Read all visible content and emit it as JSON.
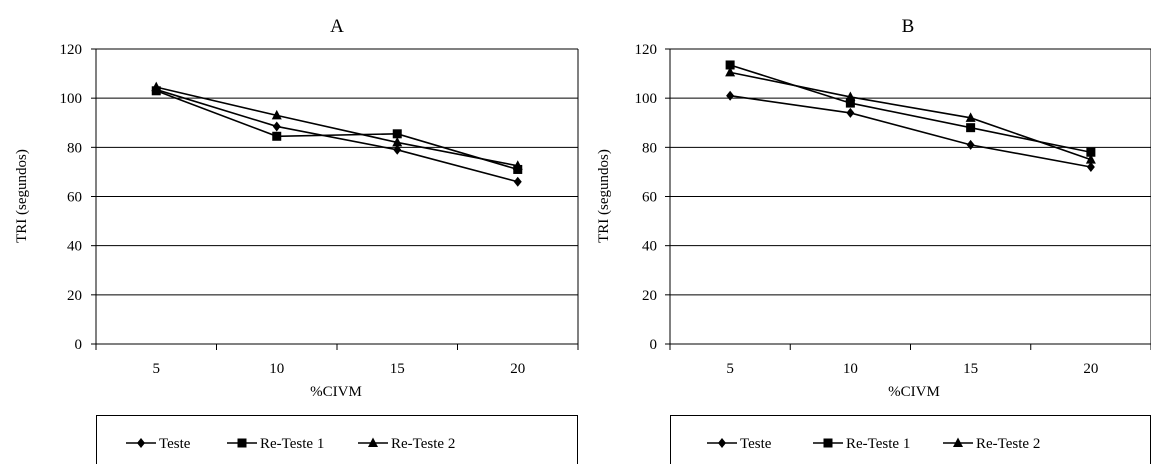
{
  "chart_data": [
    {
      "type": "line",
      "title": "A",
      "xlabel": "%CIVM",
      "ylabel": "TRI (segundos)",
      "categories": [
        "5",
        "10",
        "15",
        "20"
      ],
      "ylim": [
        0,
        120
      ],
      "yticks": [
        "0",
        "20",
        "40",
        "60",
        "80",
        "100",
        "120"
      ],
      "grid": true,
      "legend_position": "bottom",
      "series": [
        {
          "name": "Teste",
          "marker": "diamond",
          "values": [
            103.5,
            88.5,
            79,
            66
          ]
        },
        {
          "name": "Re-Teste 1",
          "marker": "square",
          "values": [
            103,
            84.5,
            85.5,
            71
          ]
        },
        {
          "name": "Re-Teste 2",
          "marker": "triangle",
          "values": [
            104.5,
            93,
            82,
            72.5
          ]
        }
      ]
    },
    {
      "type": "line",
      "title": "B",
      "xlabel": "%CIVM",
      "ylabel": "TRI (segundos)",
      "categories": [
        "5",
        "10",
        "15",
        "20"
      ],
      "ylim": [
        0,
        120
      ],
      "yticks": [
        "0",
        "20",
        "40",
        "60",
        "80",
        "100",
        "120"
      ],
      "grid": true,
      "legend_position": "bottom",
      "series": [
        {
          "name": "Teste",
          "marker": "diamond",
          "values": [
            101,
            94,
            81,
            72
          ]
        },
        {
          "name": "Re-Teste 1",
          "marker": "square",
          "values": [
            113.5,
            98,
            88,
            78
          ]
        },
        {
          "name": "Re-Teste 2",
          "marker": "triangle",
          "values": [
            110.5,
            100.5,
            92,
            75
          ]
        }
      ]
    }
  ]
}
